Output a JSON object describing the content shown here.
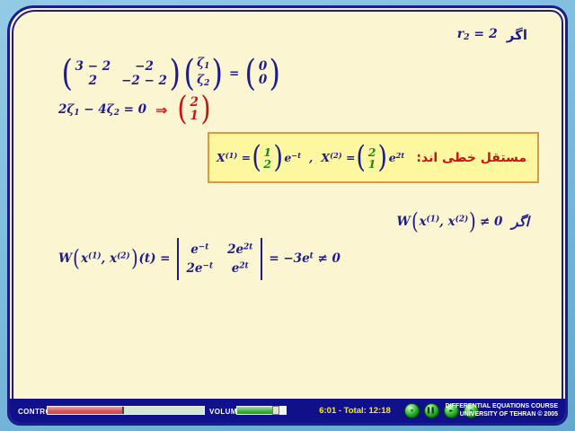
{
  "sym": {
    "lp": "(",
    "rp": ")"
  },
  "top_right": {
    "if": "اگر",
    "formula": [
      {
        "t": "r",
        "s": "2"
      },
      {
        "t": " = 2"
      }
    ]
  },
  "matrix_eq": {
    "m": [
      [
        "3 − 2",
        "−2"
      ],
      [
        "2",
        "−2 − 2"
      ]
    ],
    "zeta": [
      [
        {
          "t": "ζ",
          "s": "1"
        }
      ],
      [
        {
          "t": "ζ",
          "s": "2"
        }
      ]
    ],
    "eq": "=",
    "rhs": [
      "0",
      "0"
    ]
  },
  "eq2": {
    "lhs": [
      {
        "t": "2ζ",
        "s": "1"
      },
      {
        "t": " − 4ζ",
        "s": "2"
      },
      {
        "t": " = 0"
      }
    ],
    "arrow": "⇒",
    "vec": [
      "2",
      "1"
    ]
  },
  "yellow_box": {
    "label": "مستقل خطی اند:",
    "x1_head": [
      {
        "t": "X",
        "p": "(1)"
      },
      {
        "t": " = "
      }
    ],
    "x1_vec": [
      "1",
      "2"
    ],
    "x1_exp": [
      {
        "t": "e",
        "p": "−t"
      }
    ],
    "comma": ",",
    "x2_head": [
      {
        "t": "X",
        "p": "(2)"
      },
      {
        "t": " = "
      }
    ],
    "x2_vec": [
      "2",
      "1"
    ],
    "x2_exp": [
      {
        "t": "e",
        "p": "2t"
      }
    ]
  },
  "w_condition": {
    "if": "اگر",
    "w": "W",
    "args": [
      {
        "t": "x",
        "p": "(1)"
      },
      {
        "t": ", x",
        "p": "(2)"
      }
    ],
    "neq": "≠ 0"
  },
  "wronskian": {
    "w": "W",
    "args": [
      {
        "t": "x",
        "p": "(1)"
      },
      {
        "t": ", x",
        "p": "(2)"
      }
    ],
    "of_t": [
      {
        "t": "(t) ="
      }
    ],
    "det": [
      [
        [
          {
            "t": "e",
            "p": "−t"
          }
        ],
        [
          {
            "t": "2e",
            "p": "2t"
          }
        ]
      ],
      [
        [
          {
            "t": "2e",
            "p": "−t"
          }
        ],
        [
          {
            "t": "e",
            "p": "2t"
          }
        ]
      ]
    ],
    "result": [
      {
        "t": "= −3e",
        "p": "t"
      },
      {
        "t": " ≠ 0"
      }
    ]
  },
  "bottom_bar": {
    "control_label": "CONTROL",
    "control_progress_pct": 49,
    "volume_label": "VOLUME",
    "volume_level_pct": 73,
    "time_text": "6:01 - Total: 12:18",
    "buttons": [
      {
        "name": "skip-back-icon",
        "glyph": "«"
      },
      {
        "name": "pause-icon",
        "glyph": "▌▌"
      },
      {
        "name": "play-icon",
        "glyph": "►"
      },
      {
        "name": "skip-forward-icon",
        "glyph": "»"
      }
    ],
    "credit_line1": "DIFFERENTIAL EQUATIONS COURSE",
    "credit_line2": "UNIVERSITY OF TEHRAN © 2005"
  },
  "colors": {
    "navy": "#1c1c8e",
    "red": "#cc1111",
    "green": "#1a8a1a",
    "cream": "#fcf5d2",
    "highlight_fill": "#fdf7a0",
    "highlight_border": "#dd9933",
    "bar_navy": "#10108a",
    "time_yellow": "#ffee00",
    "sky_blue": "#7cbcdc"
  }
}
